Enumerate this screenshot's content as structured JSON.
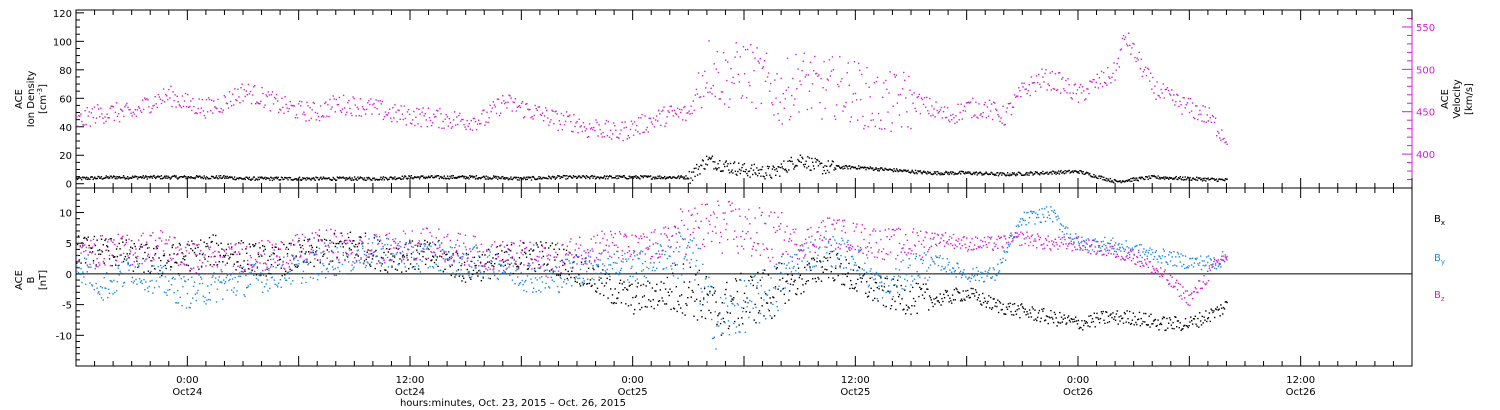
{
  "chart_data": [
    {
      "type": "scatter",
      "panel": "top",
      "left_axis": {
        "label_lines": [
          "ACE",
          "Ion Density"
        ],
        "unit_base": "[cm",
        "unit_sup": "-3",
        "unit_end": "]",
        "ylim": [
          -3,
          122
        ],
        "ticks": [
          0,
          20,
          40,
          60,
          80,
          100,
          120
        ]
      },
      "right_axis": {
        "label_lines": [
          "ACE",
          "Velocity",
          "[km/s]"
        ],
        "ylim": [
          360,
          570
        ],
        "ticks": [
          400,
          450,
          500,
          550
        ],
        "color": "#d11fd1"
      },
      "series": [
        {
          "key": "density",
          "axis": "left",
          "color": "#000000",
          "x": [
            0,
            4,
            8,
            12,
            16,
            18,
            20,
            24,
            28,
            32,
            36,
            40,
            44,
            48,
            52,
            56,
            60,
            64,
            66,
            68,
            70,
            72,
            75,
            78,
            80,
            84,
            88,
            90,
            92,
            96,
            100,
            104,
            108,
            112,
            116,
            120,
            124
          ],
          "y": [
            4,
            5,
            5,
            5,
            5,
            4,
            4,
            4,
            4,
            4,
            5,
            5,
            5,
            4,
            5,
            5,
            5,
            5,
            5,
            17,
            13,
            10,
            8,
            18,
            12,
            12,
            10,
            9,
            8,
            8,
            7,
            8,
            9,
            2,
            5,
            4,
            3
          ]
        },
        {
          "key": "velocity",
          "axis": "right",
          "color": "#d11fd1",
          "x": [
            0,
            2,
            4,
            6,
            8,
            10,
            12,
            14,
            16,
            18,
            20,
            22,
            24,
            26,
            28,
            30,
            32,
            34,
            36,
            38,
            40,
            42,
            44,
            46,
            48,
            50,
            52,
            54,
            55,
            56,
            58,
            60,
            62,
            64,
            66,
            68,
            70,
            72,
            74,
            76,
            78,
            80,
            82,
            84,
            86,
            88,
            90,
            92,
            94,
            96,
            98,
            100,
            102,
            104,
            106,
            108,
            110,
            111,
            112,
            113,
            114,
            116,
            118,
            120,
            122,
            124
          ],
          "y": [
            438,
            448,
            450,
            448,
            462,
            470,
            460,
            455,
            462,
            475,
            468,
            458,
            452,
            450,
            460,
            458,
            455,
            448,
            446,
            444,
            442,
            440,
            442,
            462,
            455,
            448,
            440,
            438,
            430,
            433,
            425,
            432,
            440,
            448,
            448,
            505,
            490,
            500,
            485,
            470,
            490,
            475,
            480,
            475,
            460,
            460,
            465,
            455,
            445,
            455,
            455,
            445,
            475,
            490,
            485,
            470,
            485,
            490,
            498,
            540,
            520,
            480,
            465,
            455,
            445,
            418
          ]
        }
      ]
    },
    {
      "type": "scatter",
      "panel": "bottom",
      "left_axis": {
        "label_lines": [
          "ACE",
          "B",
          "[nT]"
        ],
        "ylim": [
          -15,
          14
        ],
        "ticks": [
          -10,
          -5,
          0,
          5,
          10
        ]
      },
      "legend": [
        {
          "label": "B",
          "sub": "x",
          "color": "#000000"
        },
        {
          "label": "B",
          "sub": "y",
          "color": "#1e88e5"
        },
        {
          "label": "B",
          "sub": "z",
          "color": "#d11fd1"
        }
      ],
      "series": [
        {
          "key": "bx",
          "color": "#000000",
          "x": [
            0,
            3,
            6,
            9,
            12,
            15,
            18,
            21,
            24,
            27,
            30,
            33,
            36,
            39,
            42,
            45,
            48,
            51,
            54,
            57,
            60,
            63,
            66,
            69,
            72,
            75,
            78,
            81,
            84,
            87,
            90,
            93,
            96,
            99,
            102,
            105,
            108,
            111,
            114,
            117,
            120,
            123,
            124
          ],
          "y": [
            4,
            4,
            3,
            2,
            3,
            4,
            3,
            2,
            3,
            4,
            5,
            3,
            3,
            3,
            1,
            2,
            3,
            3,
            1,
            -2,
            -4,
            -3,
            -2,
            -6,
            -4,
            -3,
            -1,
            2,
            -1,
            -3,
            -4,
            -4,
            -3,
            -5,
            -6,
            -7,
            -8,
            -7,
            -7,
            -8,
            -8,
            -6,
            -5
          ]
        },
        {
          "key": "by",
          "color": "#1e88e5",
          "x": [
            0,
            3,
            6,
            9,
            12,
            15,
            18,
            21,
            24,
            27,
            30,
            33,
            36,
            39,
            42,
            45,
            48,
            51,
            54,
            57,
            60,
            63,
            66,
            69,
            72,
            75,
            78,
            81,
            84,
            87,
            90,
            93,
            96,
            99,
            102,
            105,
            108,
            111,
            114,
            117,
            120,
            123,
            124
          ],
          "y": [
            2,
            -2,
            1,
            -1,
            -3,
            -2,
            -1,
            0,
            1,
            2,
            3,
            4,
            3,
            3,
            2,
            2,
            0,
            -1,
            1,
            2,
            1,
            3,
            4,
            -8,
            -5,
            -3,
            3,
            4,
            3,
            -3,
            1,
            2,
            0,
            0,
            9,
            10,
            5,
            5,
            4,
            3,
            2,
            2,
            3
          ]
        },
        {
          "key": "bz",
          "color": "#d11fd1",
          "x": [
            0,
            3,
            6,
            9,
            12,
            15,
            18,
            21,
            24,
            27,
            30,
            33,
            36,
            39,
            42,
            45,
            48,
            51,
            54,
            57,
            60,
            63,
            66,
            69,
            72,
            75,
            78,
            81,
            84,
            87,
            90,
            93,
            96,
            99,
            102,
            105,
            108,
            111,
            114,
            117,
            120,
            123,
            124
          ],
          "y": [
            3,
            4,
            4,
            5,
            3,
            2,
            3,
            3,
            4,
            5,
            4,
            4,
            5,
            5,
            4,
            3,
            3,
            2,
            4,
            5,
            4,
            5,
            7,
            8,
            7,
            6,
            5,
            7,
            6,
            5,
            5,
            6,
            5,
            5,
            6,
            5,
            5,
            4,
            3,
            0,
            -4,
            2,
            3
          ]
        }
      ]
    }
  ],
  "x_axis": {
    "ticks": [
      {
        "h": 12,
        "top": "0:00",
        "bottom": "Oct24"
      },
      {
        "h": 36,
        "top": "12:00",
        "bottom": "Oct24"
      },
      {
        "h": 60,
        "top": "0:00",
        "bottom": "Oct25"
      },
      {
        "h": 84,
        "top": "12:00",
        "bottom": "Oct25"
      },
      {
        "h": 108,
        "top": "0:00",
        "bottom": "Oct26"
      },
      {
        "h": 132,
        "top": "12:00",
        "bottom": "Oct26"
      }
    ],
    "xlim": [
      0,
      144
    ],
    "title": "hours:minutes, Oct. 23, 2015 – Oct. 26, 2015"
  },
  "colors": {
    "black": "#000000",
    "magenta": "#d11fd1",
    "blue": "#1e88e5"
  }
}
